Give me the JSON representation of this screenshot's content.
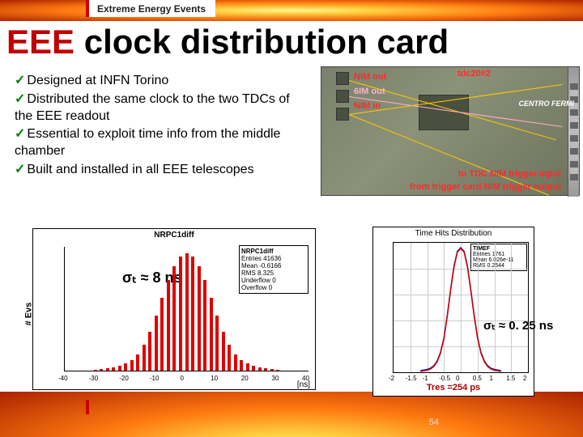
{
  "header": {
    "tab_label": "Extreme Energy Events"
  },
  "title": {
    "acronym": "EEE",
    "rest": " clock distribution card"
  },
  "bullets": [
    "Designed at INFN Torino",
    "Distributed the same clock to the two TDCs of the EEE readout",
    "Essential to exploit time info from the middle chamber",
    "Built and installed in all EEE telescopes"
  ],
  "hw": {
    "label_tdc2": "tdc20#2",
    "label_nim_out": "NIM out",
    "label_6im_out": "6IM out",
    "label_nim_in": "NIM in",
    "label_logo": "CENTRO FERMI",
    "label_to_tdc": "to TDC NIM trigger input",
    "label_from_card": "from trigger card NIM trigger output",
    "bg_color": "#7a806a"
  },
  "hist1": {
    "title": "NRPC1diff",
    "ylabel": "# Evs",
    "xlabel": "[ns]",
    "sigma_label": "σₜ  ≈ 8 ns",
    "stats": {
      "name": "NRPC1diff",
      "entries": "41636",
      "mean": "-0.6166",
      "rms": "8.325",
      "underflow": "0",
      "overflow": "0"
    },
    "bar_color": "#dd0000",
    "grid_color": "#eeeeee",
    "x_min": -40,
    "x_max": 40,
    "xtick_step": 10,
    "bars": [
      {
        "x": -30,
        "h": 0.01
      },
      {
        "x": -28,
        "h": 0.015
      },
      {
        "x": -26,
        "h": 0.02
      },
      {
        "x": -24,
        "h": 0.03
      },
      {
        "x": -22,
        "h": 0.04
      },
      {
        "x": -20,
        "h": 0.06
      },
      {
        "x": -18,
        "h": 0.09
      },
      {
        "x": -16,
        "h": 0.14
      },
      {
        "x": -14,
        "h": 0.22
      },
      {
        "x": -12,
        "h": 0.33
      },
      {
        "x": -10,
        "h": 0.47
      },
      {
        "x": -8,
        "h": 0.62
      },
      {
        "x": -6,
        "h": 0.77
      },
      {
        "x": -4,
        "h": 0.89
      },
      {
        "x": -2,
        "h": 0.97
      },
      {
        "x": 0,
        "h": 1.0
      },
      {
        "x": 2,
        "h": 0.97
      },
      {
        "x": 4,
        "h": 0.89
      },
      {
        "x": 6,
        "h": 0.77
      },
      {
        "x": 8,
        "h": 0.62
      },
      {
        "x": 10,
        "h": 0.47
      },
      {
        "x": 12,
        "h": 0.33
      },
      {
        "x": 14,
        "h": 0.22
      },
      {
        "x": 16,
        "h": 0.14
      },
      {
        "x": 18,
        "h": 0.09
      },
      {
        "x": 20,
        "h": 0.06
      },
      {
        "x": 22,
        "h": 0.04
      },
      {
        "x": 24,
        "h": 0.03
      },
      {
        "x": 26,
        "h": 0.02
      },
      {
        "x": 28,
        "h": 0.015
      },
      {
        "x": 30,
        "h": 0.01
      }
    ]
  },
  "hist2": {
    "title": "Time Hits Distribution",
    "box_title": "TIMEF",
    "sigma_label": "σₜ  ≈ 0. 25 ns",
    "res_line": "Tres =254 ps",
    "stats": {
      "entries": "1761",
      "mean": "6.026e-11",
      "rms": "0.2544"
    },
    "curve_color_fit": "#d00000",
    "curve_color_hist": "#0020c0",
    "grid_color": "#cccccc",
    "x_min": -2,
    "x_max": 2,
    "xtick_step": 0.5,
    "points": [
      {
        "x": -1.2,
        "y": 0.0
      },
      {
        "x": -1.0,
        "y": 0.01
      },
      {
        "x": -0.9,
        "y": 0.02
      },
      {
        "x": -0.8,
        "y": 0.04
      },
      {
        "x": -0.7,
        "y": 0.08
      },
      {
        "x": -0.6,
        "y": 0.15
      },
      {
        "x": -0.5,
        "y": 0.27
      },
      {
        "x": -0.4,
        "y": 0.45
      },
      {
        "x": -0.3,
        "y": 0.66
      },
      {
        "x": -0.2,
        "y": 0.85
      },
      {
        "x": -0.1,
        "y": 0.97
      },
      {
        "x": 0.0,
        "y": 1.0
      },
      {
        "x": 0.1,
        "y": 0.97
      },
      {
        "x": 0.2,
        "y": 0.85
      },
      {
        "x": 0.3,
        "y": 0.66
      },
      {
        "x": 0.4,
        "y": 0.45
      },
      {
        "x": 0.5,
        "y": 0.27
      },
      {
        "x": 0.6,
        "y": 0.15
      },
      {
        "x": 0.7,
        "y": 0.08
      },
      {
        "x": 0.8,
        "y": 0.04
      },
      {
        "x": 0.9,
        "y": 0.02
      },
      {
        "x": 1.0,
        "y": 0.01
      },
      {
        "x": 1.2,
        "y": 0.0
      }
    ]
  },
  "page_number": "54"
}
